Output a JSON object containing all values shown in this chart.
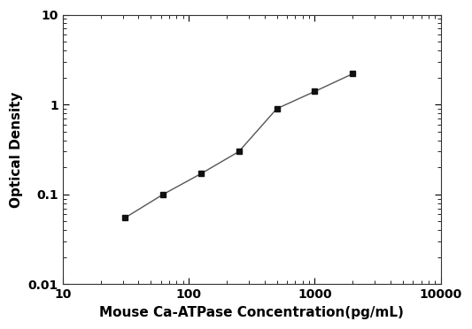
{
  "x": [
    31.25,
    62.5,
    125,
    250,
    500,
    1000,
    2000
  ],
  "y": [
    0.055,
    0.1,
    0.17,
    0.3,
    0.9,
    1.4,
    2.2
  ],
  "xlabel": "Mouse Ca-ATPase Concentration(pg/mL)",
  "ylabel": "Optical Density",
  "xlim": [
    10,
    10000
  ],
  "ylim": [
    0.01,
    10
  ],
  "line_color": "#555555",
  "marker_color": "#111111",
  "marker": "s",
  "marker_size": 5,
  "line_width": 1.0,
  "background_color": "#ffffff",
  "xticks": [
    10,
    100,
    1000,
    10000
  ],
  "xtick_labels": [
    "10",
    "100",
    "1000",
    "10000"
  ],
  "yticks": [
    0.01,
    0.1,
    1,
    10
  ],
  "ytick_labels": [
    "0.01",
    "0.1",
    "1",
    "10"
  ],
  "xlabel_fontsize": 11,
  "ylabel_fontsize": 11,
  "tick_fontsize": 10
}
